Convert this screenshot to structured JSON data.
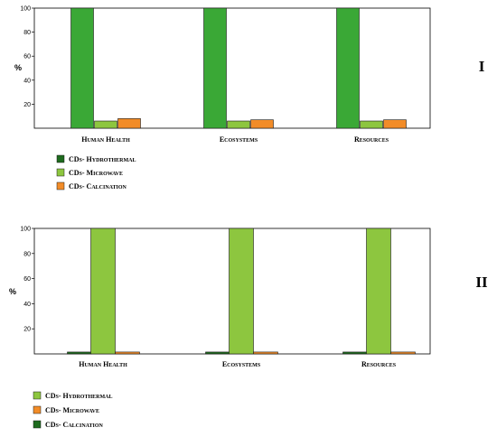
{
  "chart_data": [
    {
      "type": "bar",
      "panel_label": "I",
      "ylabel": "%",
      "ylim": [
        0,
        100
      ],
      "yticks": [
        20,
        40,
        60,
        80,
        100
      ],
      "grid": false,
      "legend_position": "bottom-left",
      "categories": [
        "Human Health",
        "Ecosystems",
        "Resources"
      ],
      "series": [
        {
          "name": "CDs- Hydrothermal",
          "color": "#3aa836",
          "legend_color": "#1e6b1e",
          "values": [
            100,
            100,
            100
          ]
        },
        {
          "name": "CDs- Microwave",
          "color": "#8dc63f",
          "legend_color": "#8dc63f",
          "values": [
            6,
            6,
            6
          ]
        },
        {
          "name": "CDs- Calcination",
          "color": "#f28c28",
          "legend_color": "#f28c28",
          "values": [
            8,
            7,
            7
          ]
        }
      ]
    },
    {
      "type": "bar",
      "panel_label": "II",
      "ylabel": "%",
      "ylim": [
        0,
        100
      ],
      "yticks": [
        20,
        40,
        60,
        80,
        100
      ],
      "grid": false,
      "legend_position": "bottom-left",
      "categories": [
        "Human Health",
        "Ecosystems",
        "Resources"
      ],
      "series": [
        {
          "name": "CDs- Calcination",
          "color": "#1e6b1e",
          "legend_color": "#1e6b1e",
          "values": [
            1.5,
            1.5,
            1.5
          ]
        },
        {
          "name": "CDs- Hydrothermal",
          "color": "#8dc63f",
          "legend_color": "#8dc63f",
          "values": [
            100,
            100,
            100
          ]
        },
        {
          "name": "CDs- Microwave",
          "color": "#f28c28",
          "legend_color": "#f28c28",
          "values": [
            1.5,
            1.5,
            1.5
          ]
        }
      ],
      "legend_order": [
        "CDs- Hydrothermal",
        "CDs- Microwave",
        "CDs- Calcination"
      ]
    }
  ]
}
